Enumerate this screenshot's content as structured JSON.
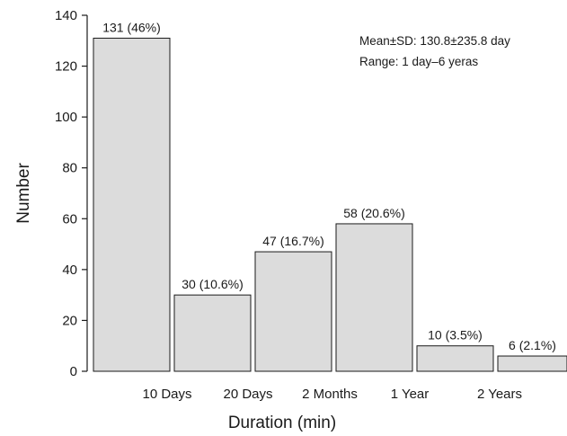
{
  "chart_data": {
    "type": "bar",
    "categories": [
      "10 Days",
      "20 Days",
      "2 Months",
      "1 Year",
      "2 Years"
    ],
    "bar_values": [
      131,
      30,
      47,
      58,
      10,
      6
    ],
    "bar_labels": [
      "131 (46%)",
      "30 (10.6%)",
      "47 (16.7%)",
      "58 (20.6%)",
      "10 (3.5%)",
      "6 (2.1%)"
    ],
    "y_ticks": [
      0,
      20,
      40,
      60,
      80,
      100,
      120,
      140
    ],
    "ylim": [
      0,
      140
    ],
    "xlabel": "Duration (min)",
    "ylabel": "Number",
    "annotations": [
      "Mean±SD: 130.8±235.8 day",
      "Range: 1 day–6 yeras"
    ],
    "grid": false,
    "colors": {
      "bar_fill": "#dcdcdc",
      "bar_stroke": "#1a1a1a"
    }
  }
}
